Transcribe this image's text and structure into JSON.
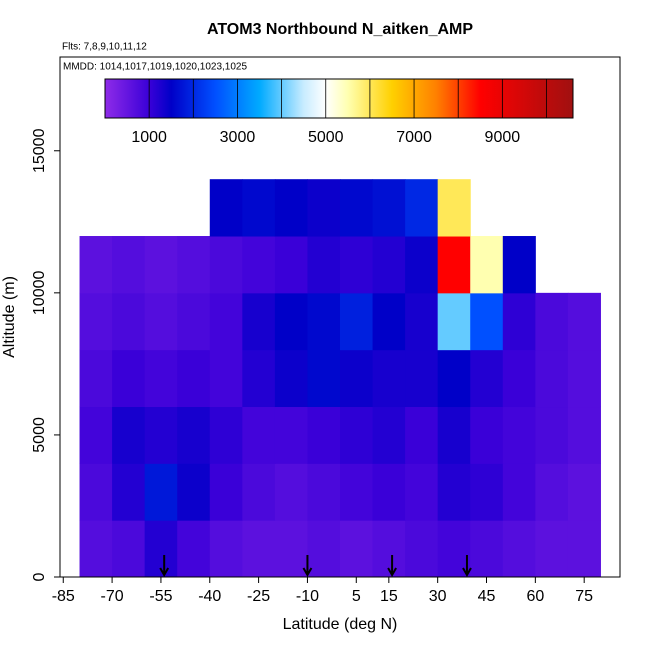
{
  "chart_data": {
    "type": "heatmap",
    "title": "ATOM3 Northbound N_aitken_AMP",
    "subtitle": "Flts: 7,8,9,10,11,12",
    "annotation": "MMDD: 1014,1017,1019,1020,1023,1025",
    "xlabel": "Latitude (deg N)",
    "ylabel": "Altitude (m)",
    "xlim": [
      -86,
      86
    ],
    "xticks": [
      -85,
      -70,
      -55,
      -40,
      -25,
      -10,
      5,
      15,
      30,
      45,
      60,
      75
    ],
    "ylim": [
      0,
      18300
    ],
    "yticks": [
      0,
      5000,
      10000,
      15000
    ],
    "x_edges": [
      -80,
      -70,
      -60,
      -50,
      -40,
      -30,
      -20,
      -10,
      0,
      10,
      20,
      30,
      40,
      50,
      60,
      70,
      80
    ],
    "y_edges": [
      0,
      2000,
      4000,
      6000,
      8000,
      10000,
      12000,
      14000
    ],
    "values": [
      [
        700,
        800,
        1200,
        900,
        700,
        600,
        600,
        700,
        600,
        700,
        800,
        900,
        800,
        700,
        600,
        600
      ],
      [
        800,
        1200,
        1800,
        1400,
        1000,
        800,
        700,
        800,
        900,
        1000,
        900,
        1200,
        1100,
        900,
        700,
        600
      ],
      [
        900,
        1300,
        1200,
        1300,
        1100,
        900,
        900,
        1000,
        1100,
        1200,
        1000,
        1300,
        1000,
        900,
        800,
        700
      ],
      [
        800,
        1000,
        900,
        1000,
        900,
        1200,
        1400,
        1600,
        1400,
        1300,
        1300,
        1500,
        1200,
        1000,
        800,
        700
      ],
      [
        700,
        800,
        700,
        800,
        900,
        1300,
        1500,
        1600,
        1900,
        1500,
        1300,
        4000,
        2500,
        1100,
        800,
        700
      ],
      [
        600,
        700,
        600,
        700,
        800,
        900,
        1000,
        1200,
        1100,
        1200,
        1400,
        8500,
        5500,
        1500,
        null,
        null
      ],
      [
        null,
        null,
        null,
        null,
        1500,
        1600,
        1500,
        1400,
        1600,
        1700,
        2000,
        6000,
        null,
        null,
        null,
        null
      ]
    ],
    "colorscale": [
      [
        0,
        "#8f2be8"
      ],
      [
        1000,
        "#3a00d8"
      ],
      [
        1500,
        "#0000c8"
      ],
      [
        2500,
        "#0050ff"
      ],
      [
        3500,
        "#00aaff"
      ],
      [
        4500,
        "#c8ecff"
      ],
      [
        5000,
        "#ffffff"
      ],
      [
        5500,
        "#ffffb0"
      ],
      [
        6500,
        "#ffd000"
      ],
      [
        7500,
        "#ff8000"
      ],
      [
        8500,
        "#ff0000"
      ],
      [
        10600,
        "#a01010"
      ]
    ],
    "colorbar_lim": [
      0,
      10600
    ],
    "colorbar_ticks": [
      1000,
      3000,
      5000,
      7000,
      9000
    ],
    "colorbar_breaks": [
      1000,
      2000,
      3000,
      4000,
      5000,
      6000,
      7000,
      8000,
      9000,
      10000
    ],
    "marker_lats": [
      -54,
      -10,
      16,
      39
    ]
  }
}
